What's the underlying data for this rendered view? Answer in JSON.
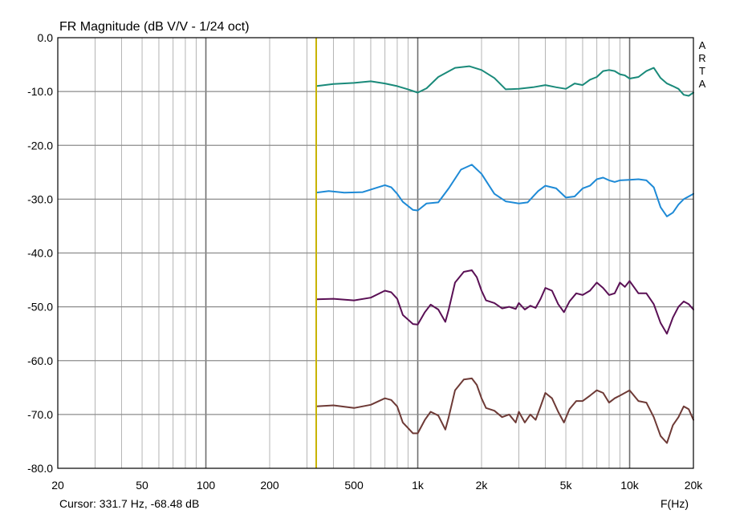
{
  "chart_data": {
    "type": "line",
    "title": "FR Magnitude (dB V/V - 1/24 oct)",
    "xlabel": "F(Hz)",
    "ylabel": "",
    "x_scale": "log",
    "xlim": [
      20,
      20000
    ],
    "ylim": [
      -80,
      0
    ],
    "grid": true,
    "x_ticks": [
      {
        "value": 20,
        "label": "20"
      },
      {
        "value": 50,
        "label": "50"
      },
      {
        "value": 100,
        "label": "100"
      },
      {
        "value": 200,
        "label": "200"
      },
      {
        "value": 500,
        "label": "500"
      },
      {
        "value": 1000,
        "label": "1k"
      },
      {
        "value": 2000,
        "label": "2k"
      },
      {
        "value": 5000,
        "label": "5k"
      },
      {
        "value": 10000,
        "label": "10k"
      },
      {
        "value": 20000,
        "label": "20k"
      }
    ],
    "y_ticks": [
      {
        "value": 0,
        "label": "0.0"
      },
      {
        "value": -10,
        "label": "-10.0"
      },
      {
        "value": -20,
        "label": "-20.0"
      },
      {
        "value": -30,
        "label": "-30.0"
      },
      {
        "value": -40,
        "label": "-40.0"
      },
      {
        "value": -50,
        "label": "-50.0"
      },
      {
        "value": -60,
        "label": "-60.0"
      },
      {
        "value": -70,
        "label": "-70.0"
      },
      {
        "value": -80,
        "label": "-80.0"
      }
    ],
    "cursor": {
      "label": "Cursor: 331.7 Hz, -68.48 dB",
      "x": 331.7,
      "y": -68.48,
      "color": "#c8b400"
    },
    "watermark_letters": [
      "A",
      "R",
      "T",
      "A"
    ],
    "series": [
      {
        "color": "#1a8a7a",
        "points": [
          [
            331.7,
            -9.0
          ],
          [
            400,
            -8.6
          ],
          [
            500,
            -8.4
          ],
          [
            600,
            -8.1
          ],
          [
            700,
            -8.5
          ],
          [
            800,
            -9.0
          ],
          [
            900,
            -9.6
          ],
          [
            1000,
            -10.2
          ],
          [
            1100,
            -9.4
          ],
          [
            1250,
            -7.3
          ],
          [
            1500,
            -5.6
          ],
          [
            1750,
            -5.3
          ],
          [
            2000,
            -6.0
          ],
          [
            2300,
            -7.5
          ],
          [
            2600,
            -9.6
          ],
          [
            3000,
            -9.5
          ],
          [
            3500,
            -9.2
          ],
          [
            4000,
            -8.8
          ],
          [
            4500,
            -9.2
          ],
          [
            5000,
            -9.5
          ],
          [
            5500,
            -8.5
          ],
          [
            6000,
            -8.8
          ],
          [
            6500,
            -7.8
          ],
          [
            7000,
            -7.3
          ],
          [
            7500,
            -6.2
          ],
          [
            8000,
            -6.0
          ],
          [
            8500,
            -6.2
          ],
          [
            9000,
            -6.8
          ],
          [
            9500,
            -7.0
          ],
          [
            10000,
            -7.6
          ],
          [
            11000,
            -7.3
          ],
          [
            12000,
            -6.2
          ],
          [
            13000,
            -5.6
          ],
          [
            14000,
            -7.5
          ],
          [
            15000,
            -8.5
          ],
          [
            16000,
            -9.0
          ],
          [
            17000,
            -9.5
          ],
          [
            18000,
            -10.6
          ],
          [
            19000,
            -10.8
          ],
          [
            20000,
            -10.2
          ]
        ]
      },
      {
        "color": "#1e8ad6",
        "points": [
          [
            331.7,
            -28.8
          ],
          [
            380,
            -28.5
          ],
          [
            450,
            -28.8
          ],
          [
            550,
            -28.7
          ],
          [
            650,
            -27.8
          ],
          [
            700,
            -27.4
          ],
          [
            750,
            -27.8
          ],
          [
            800,
            -29.0
          ],
          [
            850,
            -30.5
          ],
          [
            950,
            -32.0
          ],
          [
            1000,
            -32.1
          ],
          [
            1100,
            -30.8
          ],
          [
            1250,
            -30.6
          ],
          [
            1400,
            -28.0
          ],
          [
            1600,
            -24.5
          ],
          [
            1800,
            -23.6
          ],
          [
            2000,
            -25.3
          ],
          [
            2300,
            -29.0
          ],
          [
            2600,
            -30.4
          ],
          [
            3000,
            -30.8
          ],
          [
            3300,
            -30.6
          ],
          [
            3700,
            -28.5
          ],
          [
            4000,
            -27.5
          ],
          [
            4500,
            -28.0
          ],
          [
            5000,
            -29.7
          ],
          [
            5500,
            -29.5
          ],
          [
            6000,
            -28.0
          ],
          [
            6500,
            -27.5
          ],
          [
            7000,
            -26.3
          ],
          [
            7500,
            -26.0
          ],
          [
            8000,
            -26.5
          ],
          [
            8500,
            -26.8
          ],
          [
            9000,
            -26.5
          ],
          [
            10000,
            -26.4
          ],
          [
            11000,
            -26.3
          ],
          [
            12000,
            -26.5
          ],
          [
            13000,
            -27.8
          ],
          [
            14000,
            -31.5
          ],
          [
            15000,
            -33.2
          ],
          [
            16000,
            -32.5
          ],
          [
            17000,
            -31.0
          ],
          [
            18000,
            -30.0
          ],
          [
            19000,
            -29.5
          ],
          [
            20000,
            -29.0
          ]
        ]
      },
      {
        "color": "#5a1055",
        "points": [
          [
            331.7,
            -48.6
          ],
          [
            400,
            -48.5
          ],
          [
            500,
            -48.8
          ],
          [
            600,
            -48.3
          ],
          [
            700,
            -47.0
          ],
          [
            750,
            -47.3
          ],
          [
            800,
            -48.5
          ],
          [
            850,
            -51.5
          ],
          [
            950,
            -53.2
          ],
          [
            1000,
            -53.3
          ],
          [
            1080,
            -51.0
          ],
          [
            1150,
            -49.6
          ],
          [
            1250,
            -50.5
          ],
          [
            1350,
            -52.8
          ],
          [
            1400,
            -50.5
          ],
          [
            1500,
            -45.5
          ],
          [
            1650,
            -43.5
          ],
          [
            1800,
            -43.2
          ],
          [
            1900,
            -44.5
          ],
          [
            2000,
            -47.0
          ],
          [
            2100,
            -48.8
          ],
          [
            2300,
            -49.3
          ],
          [
            2500,
            -50.3
          ],
          [
            2700,
            -50.0
          ],
          [
            2900,
            -50.4
          ],
          [
            3000,
            -49.3
          ],
          [
            3200,
            -50.5
          ],
          [
            3400,
            -49.8
          ],
          [
            3600,
            -50.2
          ],
          [
            3800,
            -48.5
          ],
          [
            4000,
            -46.5
          ],
          [
            4300,
            -47.0
          ],
          [
            4600,
            -49.5
          ],
          [
            4900,
            -51.0
          ],
          [
            5200,
            -49.0
          ],
          [
            5600,
            -47.5
          ],
          [
            6000,
            -47.8
          ],
          [
            6500,
            -47.0
          ],
          [
            7000,
            -45.5
          ],
          [
            7500,
            -46.5
          ],
          [
            8000,
            -47.8
          ],
          [
            8500,
            -47.5
          ],
          [
            9000,
            -45.5
          ],
          [
            9500,
            -46.3
          ],
          [
            10000,
            -45.2
          ],
          [
            11000,
            -47.5
          ],
          [
            12000,
            -47.5
          ],
          [
            13000,
            -49.5
          ],
          [
            14000,
            -53.0
          ],
          [
            15000,
            -55.0
          ],
          [
            16000,
            -52.0
          ],
          [
            17000,
            -50.0
          ],
          [
            18000,
            -49.0
          ],
          [
            19000,
            -49.5
          ],
          [
            20000,
            -50.5
          ]
        ]
      },
      {
        "color": "#6e3a36",
        "points": [
          [
            331.7,
            -68.5
          ],
          [
            400,
            -68.3
          ],
          [
            500,
            -68.8
          ],
          [
            600,
            -68.2
          ],
          [
            700,
            -67.0
          ],
          [
            750,
            -67.3
          ],
          [
            800,
            -68.5
          ],
          [
            850,
            -71.5
          ],
          [
            950,
            -73.5
          ],
          [
            1000,
            -73.5
          ],
          [
            1080,
            -71.0
          ],
          [
            1150,
            -69.5
          ],
          [
            1250,
            -70.2
          ],
          [
            1350,
            -72.8
          ],
          [
            1400,
            -70.5
          ],
          [
            1500,
            -65.5
          ],
          [
            1650,
            -63.5
          ],
          [
            1800,
            -63.3
          ],
          [
            1900,
            -64.5
          ],
          [
            2000,
            -67.0
          ],
          [
            2100,
            -68.8
          ],
          [
            2300,
            -69.3
          ],
          [
            2500,
            -70.5
          ],
          [
            2700,
            -70.0
          ],
          [
            2900,
            -71.5
          ],
          [
            3000,
            -69.5
          ],
          [
            3200,
            -71.5
          ],
          [
            3400,
            -70.0
          ],
          [
            3600,
            -71.0
          ],
          [
            3800,
            -68.5
          ],
          [
            4000,
            -66.0
          ],
          [
            4300,
            -67.0
          ],
          [
            4600,
            -69.5
          ],
          [
            4900,
            -71.5
          ],
          [
            5200,
            -69.0
          ],
          [
            5600,
            -67.5
          ],
          [
            6000,
            -67.5
          ],
          [
            6500,
            -66.5
          ],
          [
            7000,
            -65.5
          ],
          [
            7500,
            -66.0
          ],
          [
            8000,
            -67.8
          ],
          [
            8500,
            -67.0
          ],
          [
            9000,
            -66.5
          ],
          [
            10000,
            -65.5
          ],
          [
            11000,
            -67.5
          ],
          [
            12000,
            -67.8
          ],
          [
            13000,
            -70.5
          ],
          [
            14000,
            -74.0
          ],
          [
            15000,
            -75.3
          ],
          [
            16000,
            -72.0
          ],
          [
            17000,
            -70.5
          ],
          [
            18000,
            -68.5
          ],
          [
            19000,
            -69.0
          ],
          [
            20000,
            -71.0
          ]
        ]
      }
    ]
  }
}
